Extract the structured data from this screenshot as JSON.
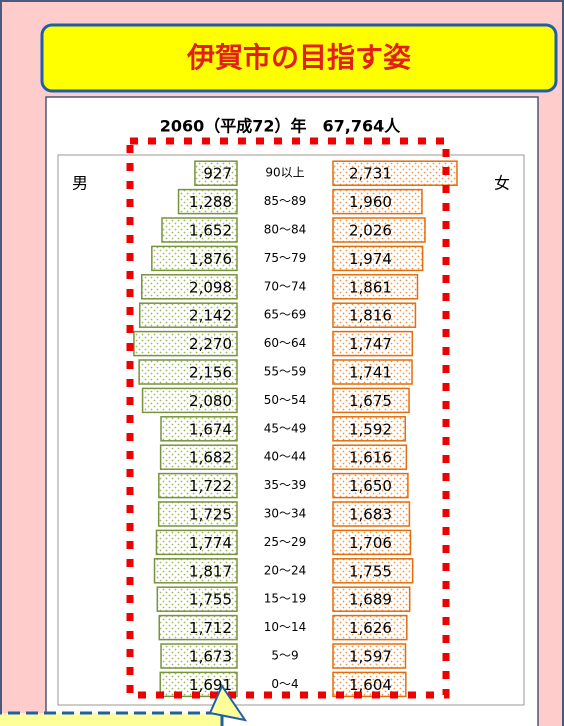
{
  "header": {
    "title": "伊賀市の目指す姿"
  },
  "chart_data": {
    "type": "pyramid",
    "subtitle": "2060（平成72）年　67,764人",
    "left_label": "男",
    "right_label": "女",
    "categories": [
      "90以上",
      "85～89",
      "80～84",
      "75～79",
      "70～74",
      "65～69",
      "60～64",
      "55～59",
      "50～54",
      "45～49",
      "40～44",
      "35～39",
      "30～34",
      "25～29",
      "20～24",
      "15～19",
      "10～14",
      "5～9",
      "0～4"
    ],
    "series": [
      {
        "name": "男",
        "color": "#77933c",
        "side": "left",
        "values": [
          927,
          1288,
          1652,
          1876,
          2098,
          2142,
          2270,
          2156,
          2080,
          1674,
          1682,
          1722,
          1725,
          1774,
          1817,
          1755,
          1712,
          1673,
          1691
        ],
        "value_labels": [
          "927",
          "1,288",
          "1,652",
          "1,876",
          "2,098",
          "2,142",
          "2,270",
          "2,156",
          "2,080",
          "1,674",
          "1,682",
          "1,722",
          "1,725",
          "1,774",
          "1,817",
          "1,755",
          "1,712",
          "1,673",
          "1,691"
        ]
      },
      {
        "name": "女",
        "color": "#e46c0a",
        "side": "right",
        "values": [
          2731,
          1960,
          2026,
          1974,
          1861,
          1816,
          1747,
          1741,
          1675,
          1592,
          1616,
          1650,
          1683,
          1706,
          1755,
          1689,
          1626,
          1597,
          1604
        ],
        "value_labels": [
          "2,731",
          "1,960",
          "2,026",
          "1,974",
          "1,861",
          "1,816",
          "1,747",
          "1,741",
          "1,675",
          "1,592",
          "1,616",
          "1,650",
          "1,683",
          "1,706",
          "1,755",
          "1,689",
          "1,626",
          "1,597",
          "1,604"
        ]
      }
    ]
  }
}
